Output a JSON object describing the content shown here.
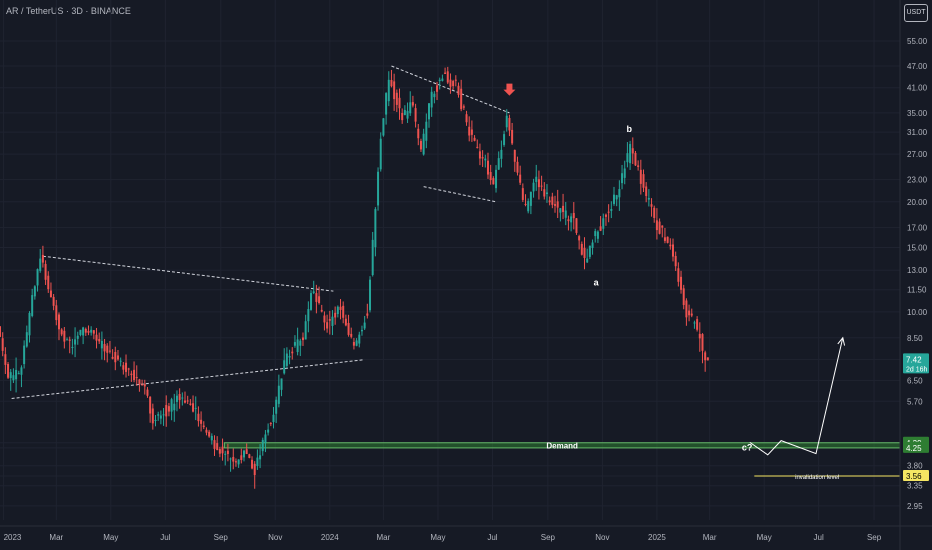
{
  "header": {
    "symbol_title": "AR / TetherUS · 3D · BINANCE",
    "currency_button": "USDT"
  },
  "colors": {
    "background": "#161a25",
    "up_candle": "#26a69a",
    "down_candle": "#ef5350",
    "demand_zone": "#2e7d32",
    "annotation": "#ffffff",
    "invalidation": "#f5e663",
    "axis_text": "#b2b5be"
  },
  "chart_data": {
    "type": "candlestick",
    "price_scale": "log",
    "ylim": [
      2.7,
      62
    ],
    "xlim": [
      "2022-12-28",
      "2025-09-30"
    ],
    "y_ticks": [
      "55.00",
      "47.00",
      "41.00",
      "35.00",
      "31.00",
      "27.00",
      "23.00",
      "20.00",
      "17.00",
      "15.00",
      "13.00",
      "11.50",
      "10.00",
      "8.50",
      "7.42",
      "6.50",
      "5.70",
      "4.39",
      "4.25",
      "3.80",
      "3.56",
      "3.35",
      "2.95"
    ],
    "y_tick_values": [
      55,
      47,
      41,
      35,
      31,
      27,
      23,
      20,
      17,
      15,
      13,
      11.5,
      10,
      8.5,
      7.42,
      6.5,
      5.7,
      4.39,
      4.25,
      3.8,
      3.56,
      3.35,
      2.95
    ],
    "x_ticks": [
      {
        "label": "2023",
        "date": "2023-01-01"
      },
      {
        "label": "Mar",
        "date": "2023-03-01"
      },
      {
        "label": "May",
        "date": "2023-05-01"
      },
      {
        "label": "Jul",
        "date": "2023-07-01"
      },
      {
        "label": "Sep",
        "date": "2023-09-01"
      },
      {
        "label": "Nov",
        "date": "2023-11-01"
      },
      {
        "label": "2024",
        "date": "2024-01-01"
      },
      {
        "label": "Mar",
        "date": "2024-03-01"
      },
      {
        "label": "May",
        "date": "2024-05-01"
      },
      {
        "label": "Jul",
        "date": "2024-07-01"
      },
      {
        "label": "Sep",
        "date": "2024-09-01"
      },
      {
        "label": "Nov",
        "date": "2024-11-01"
      },
      {
        "label": "2025",
        "date": "2025-01-01"
      },
      {
        "label": "Mar",
        "date": "2025-03-01"
      },
      {
        "label": "May",
        "date": "2025-05-01"
      },
      {
        "label": "Jul",
        "date": "2025-07-01"
      },
      {
        "label": "Sep",
        "date": "2025-09-01"
      }
    ],
    "price_path": [
      [
        "2022-12-28",
        9.0
      ],
      [
        "2023-01-10",
        6.6
      ],
      [
        "2023-01-22",
        6.7
      ],
      [
        "2023-02-05",
        11.0
      ],
      [
        "2023-02-14",
        14.2
      ],
      [
        "2023-02-22",
        12.0
      ],
      [
        "2023-03-08",
        8.9
      ],
      [
        "2023-03-20",
        8.0
      ],
      [
        "2023-04-05",
        9.1
      ],
      [
        "2023-04-20",
        8.3
      ],
      [
        "2023-05-05",
        7.6
      ],
      [
        "2023-05-22",
        7.0
      ],
      [
        "2023-06-10",
        6.3
      ],
      [
        "2023-06-20",
        5.1
      ],
      [
        "2023-07-05",
        5.4
      ],
      [
        "2023-07-20",
        5.9
      ],
      [
        "2023-08-05",
        5.5
      ],
      [
        "2023-08-20",
        4.6
      ],
      [
        "2023-09-05",
        4.1
      ],
      [
        "2023-09-20",
        3.9
      ],
      [
        "2023-10-01",
        4.2
      ],
      [
        "2023-10-12",
        3.7
      ],
      [
        "2023-10-22",
        4.5
      ],
      [
        "2023-11-01",
        5.2
      ],
      [
        "2023-11-15",
        7.4
      ],
      [
        "2023-12-05",
        8.5
      ],
      [
        "2023-12-15",
        11.3
      ],
      [
        "2024-01-01",
        9.2
      ],
      [
        "2024-01-15",
        10.3
      ],
      [
        "2024-02-01",
        8.0
      ],
      [
        "2024-02-15",
        10.0
      ],
      [
        "2024-03-01",
        30.0
      ],
      [
        "2024-03-10",
        44.0
      ],
      [
        "2024-03-25",
        34.0
      ],
      [
        "2024-04-05",
        37.0
      ],
      [
        "2024-04-15",
        27.0
      ],
      [
        "2024-04-25",
        38.0
      ],
      [
        "2024-05-10",
        45.0
      ],
      [
        "2024-05-25",
        41.0
      ],
      [
        "2024-06-10",
        30.0
      ],
      [
        "2024-06-25",
        26.0
      ],
      [
        "2024-07-05",
        22.0
      ],
      [
        "2024-07-20",
        34.0
      ],
      [
        "2024-08-01",
        24.0
      ],
      [
        "2024-08-10",
        19.0
      ],
      [
        "2024-08-20",
        23.0
      ],
      [
        "2024-09-01",
        21.0
      ],
      [
        "2024-09-15",
        19.0
      ],
      [
        "2024-10-01",
        18.0
      ],
      [
        "2024-10-15",
        14.0
      ],
      [
        "2024-11-01",
        17.0
      ],
      [
        "2024-11-20",
        21.0
      ],
      [
        "2024-12-05",
        28.0
      ],
      [
        "2024-12-20",
        22.0
      ],
      [
        "2025-01-05",
        17.0
      ],
      [
        "2025-01-20",
        15.0
      ],
      [
        "2025-02-05",
        10.0
      ],
      [
        "2025-02-15",
        9.5
      ],
      [
        "2025-02-28",
        7.42
      ]
    ],
    "last_price": {
      "value": 7.42,
      "label": "7.42",
      "countdown": "2d 16h"
    },
    "demand_zone": {
      "label": "Demand",
      "top": 4.39,
      "bottom": 4.25,
      "top_label": "4.39",
      "bottom_label": "4.25",
      "start": "2023-09-05"
    },
    "invalidation": {
      "label": "invalidation level",
      "value": 3.56,
      "value_label": "3.56",
      "start": "2025-04-20",
      "end": "2025-09-30"
    },
    "wave_labels": [
      {
        "text": "b",
        "date": "2024-12-01",
        "price": 31.0
      },
      {
        "text": "a",
        "date": "2024-10-25",
        "price": 11.8
      },
      {
        "text": "c?",
        "date": "2025-04-12",
        "price": 4.18
      }
    ],
    "arrow_down": {
      "date": "2024-07-20",
      "price": 39.0
    },
    "projection_path": [
      [
        "2025-04-15",
        4.4
      ],
      [
        "2025-05-05",
        4.07
      ],
      [
        "2025-05-20",
        4.45
      ],
      [
        "2025-06-28",
        4.1
      ],
      [
        "2025-07-28",
        8.5
      ]
    ],
    "trendlines": [
      {
        "name": "triangle-upper",
        "from": [
          "2023-02-14",
          14.2
        ],
        "to": [
          "2024-01-05",
          11.4
        ],
        "style": "dashed"
      },
      {
        "name": "triangle-lower",
        "from": [
          "2023-01-10",
          5.8
        ],
        "to": [
          "2024-02-08",
          7.4
        ],
        "style": "dashed"
      },
      {
        "name": "flag-upper",
        "from": [
          "2024-03-10",
          47.0
        ],
        "to": [
          "2024-07-20",
          35.0
        ],
        "style": "dashed"
      },
      {
        "name": "flag-lower",
        "from": [
          "2024-04-15",
          22.0
        ],
        "to": [
          "2024-07-05",
          20.0
        ],
        "style": "dashed"
      }
    ]
  }
}
